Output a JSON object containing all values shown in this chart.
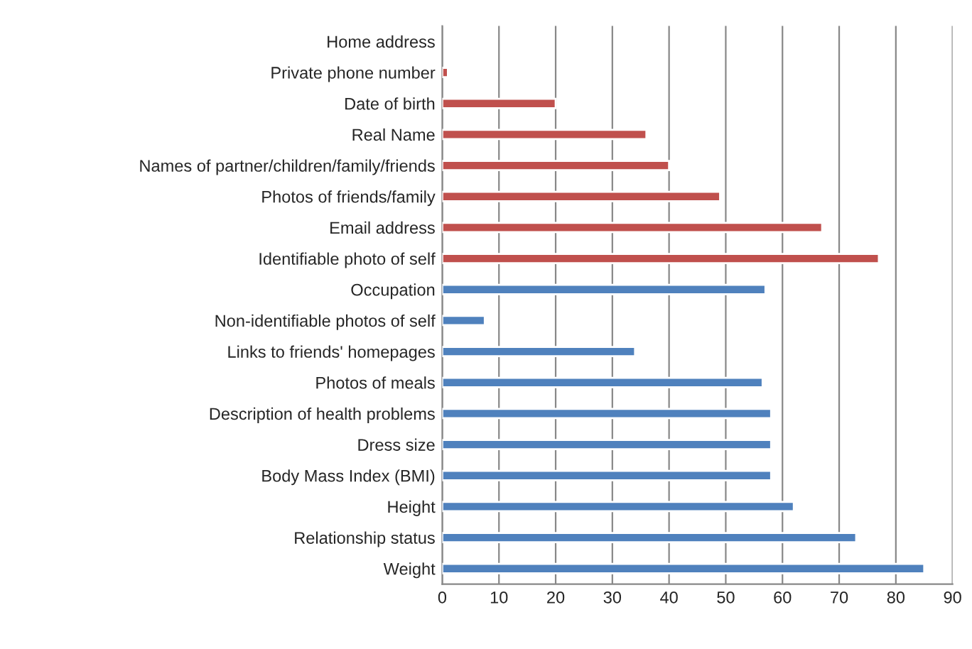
{
  "chart_data": {
    "type": "bar",
    "orientation": "horizontal",
    "categories": [
      "Home address",
      "Private phone number",
      "Date of birth",
      "Real Name",
      "Names of partner/children/family/friends",
      "Photos of friends/family",
      "Email address",
      "Identifiable photo of self",
      "Occupation",
      "Non-identifiable photos of self",
      "Links to friends' homepages",
      "Photos of meals",
      "Description of health problems",
      "Dress size",
      "Body Mass Index (BMI)",
      "Height",
      "Relationship status",
      "Weight"
    ],
    "values": [
      null,
      1,
      20,
      36,
      40,
      49,
      67,
      77,
      57,
      7.5,
      34,
      56.5,
      58,
      58,
      58,
      62,
      73,
      85
    ],
    "colors": [
      "#c0504d",
      "#c0504d",
      "#c0504d",
      "#c0504d",
      "#c0504d",
      "#c0504d",
      "#c0504d",
      "#c0504d",
      "#4f81bd",
      "#4f81bd",
      "#4f81bd",
      "#4f81bd",
      "#4f81bd",
      "#4f81bd",
      "#4f81bd",
      "#4f81bd",
      "#4f81bd",
      "#4f81bd"
    ],
    "xlim": [
      0,
      90
    ],
    "xticks": [
      0,
      10,
      20,
      30,
      40,
      50,
      60,
      70,
      80,
      90
    ],
    "grid": "x"
  }
}
